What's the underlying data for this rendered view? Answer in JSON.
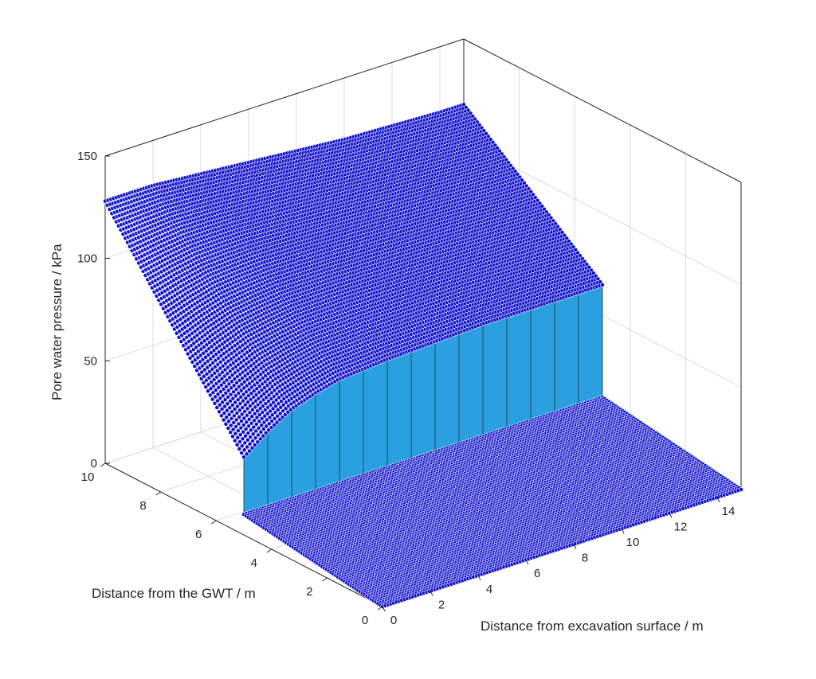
{
  "chart_data": {
    "type": "surface",
    "title": "",
    "xlabel": "Distance from excavation surface / m",
    "ylabel": "Distance from the GWT / m",
    "zlabel": "Pore water pressure / kPa",
    "xlim": [
      0,
      15
    ],
    "ylim": [
      0,
      10
    ],
    "zlim": [
      0,
      150
    ],
    "xticks": [
      "0",
      "2",
      "4",
      "6",
      "8",
      "10",
      "12",
      "14"
    ],
    "yticks": [
      "0",
      "2",
      "4",
      "6",
      "8",
      "10"
    ],
    "zticks": [
      "0",
      "50",
      "100",
      "150"
    ],
    "grid": true,
    "series": [
      {
        "surface": "lower",
        "note_y_range": [
          0,
          5
        ],
        "profile_x": [
          0,
          15
        ],
        "z_at_y0": [
          0,
          0
        ],
        "z_at_y5": [
          10,
          10
        ]
      },
      {
        "surface": "upper",
        "note_y_range": [
          5,
          10
        ],
        "profile_x": [
          0,
          1,
          2,
          3,
          4,
          6,
          8,
          10,
          12,
          14,
          15
        ],
        "z_at_y5": [
          38,
          47,
          54,
          58,
          61,
          63,
          64,
          65,
          65,
          65,
          65
        ],
        "z_at_y10": [
          128,
          128,
          128,
          127,
          126,
          124,
          122,
          120,
          119,
          118,
          118
        ]
      }
    ],
    "colors": {
      "marker": "#1010cc",
      "marker_edge": "#ffffff",
      "jump_face": "#2aa0e0",
      "axes": "#262626",
      "grid": "#dcdcdc"
    }
  }
}
